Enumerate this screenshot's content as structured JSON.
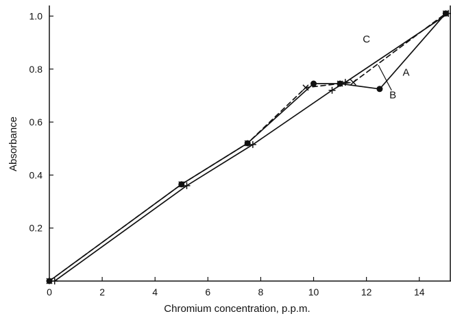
{
  "chart_data": {
    "type": "line",
    "title": "",
    "xlabel": "Chromium concentration, p.p.m.",
    "ylabel": "Absorbance",
    "xlim": [
      0,
      15.2
    ],
    "ylim": [
      0,
      1.04
    ],
    "xticks": [
      0,
      2,
      4,
      6,
      8,
      10,
      12,
      14
    ],
    "xtick_labels": [
      "0",
      "2",
      "4",
      "6",
      "8",
      "10",
      "12",
      "14"
    ],
    "yticks": [
      0.2,
      0.4,
      0.6,
      0.8,
      1.0
    ],
    "ytick_labels": [
      "0.2",
      "0.4",
      "0.6",
      "0.8",
      "1.0"
    ],
    "grid": false,
    "legend": "none",
    "series": [
      {
        "name": "A",
        "marker": "dot",
        "line": "solid",
        "x": [
          0,
          5,
          7.5,
          10,
          11,
          12.5,
          15
        ],
        "y": [
          0,
          0.365,
          0.52,
          0.745,
          0.745,
          0.725,
          1.01
        ]
      },
      {
        "name": "B",
        "marker": "x",
        "line": "dashed",
        "x": [
          0,
          5,
          7.5,
          9.7,
          11,
          11.5,
          15
        ],
        "y": [
          0,
          0.365,
          0.52,
          0.73,
          0.745,
          0.75,
          1.01
        ]
      },
      {
        "name": "C",
        "marker": "plus",
        "line": "solid",
        "x": [
          0.2,
          5.2,
          7.7,
          10.7,
          11.2,
          15.1
        ],
        "y": [
          0,
          0.36,
          0.515,
          0.72,
          0.75,
          1.01
        ]
      }
    ],
    "annotations": [
      {
        "text": "A",
        "x": 13.5,
        "y": 0.775
      },
      {
        "text": "B",
        "x": 13.0,
        "y": 0.69
      },
      {
        "text": "C",
        "x": 12.0,
        "y": 0.9
      }
    ]
  }
}
